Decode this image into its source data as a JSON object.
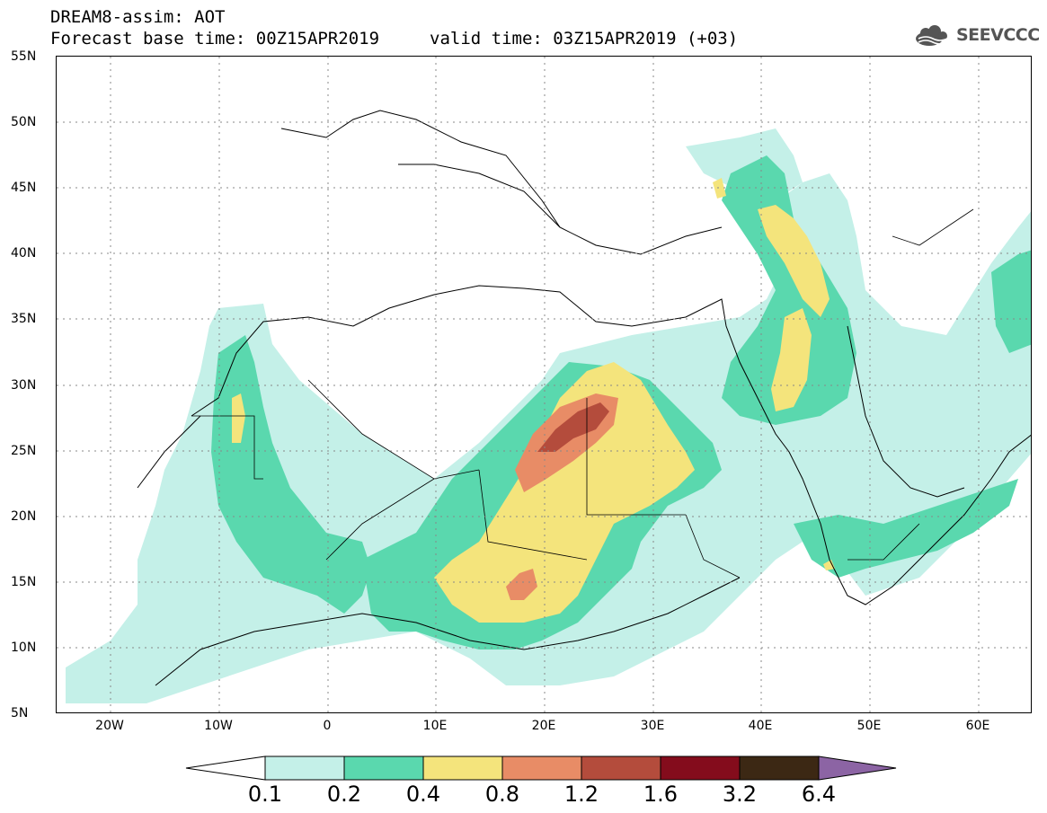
{
  "header": {
    "title": "DREAM8-assim: AOT",
    "base_time": "Forecast base time: 00Z15APR2019",
    "valid_time": "valid time: 03Z15APR2019 (+03)"
  },
  "logo": {
    "text": "SEEVCCC",
    "icon": "cloud-icon"
  },
  "map": {
    "lat_labels": [
      "55N",
      "50N",
      "45N",
      "40N",
      "35N",
      "30N",
      "25N",
      "20N",
      "15N",
      "10N",
      "5N"
    ],
    "lon_labels": [
      "20W",
      "10W",
      "0",
      "10E",
      "20E",
      "30E",
      "40E",
      "50E",
      "60E"
    ],
    "lat_range": [
      5,
      55
    ],
    "lon_range": [
      -25,
      65
    ],
    "grid": "dotted"
  },
  "legend": {
    "levels": [
      "0.1",
      "0.2",
      "0.4",
      "0.8",
      "1.2",
      "1.6",
      "3.2",
      "6.4"
    ],
    "colors": {
      "under": "#ffffff",
      "bins": [
        "#c4f0e8",
        "#5ad8ae",
        "#f4e47c",
        "#e88c66",
        "#b44c3c",
        "#840c1c",
        "#3c2814"
      ],
      "over": "#8c64a4"
    }
  }
}
